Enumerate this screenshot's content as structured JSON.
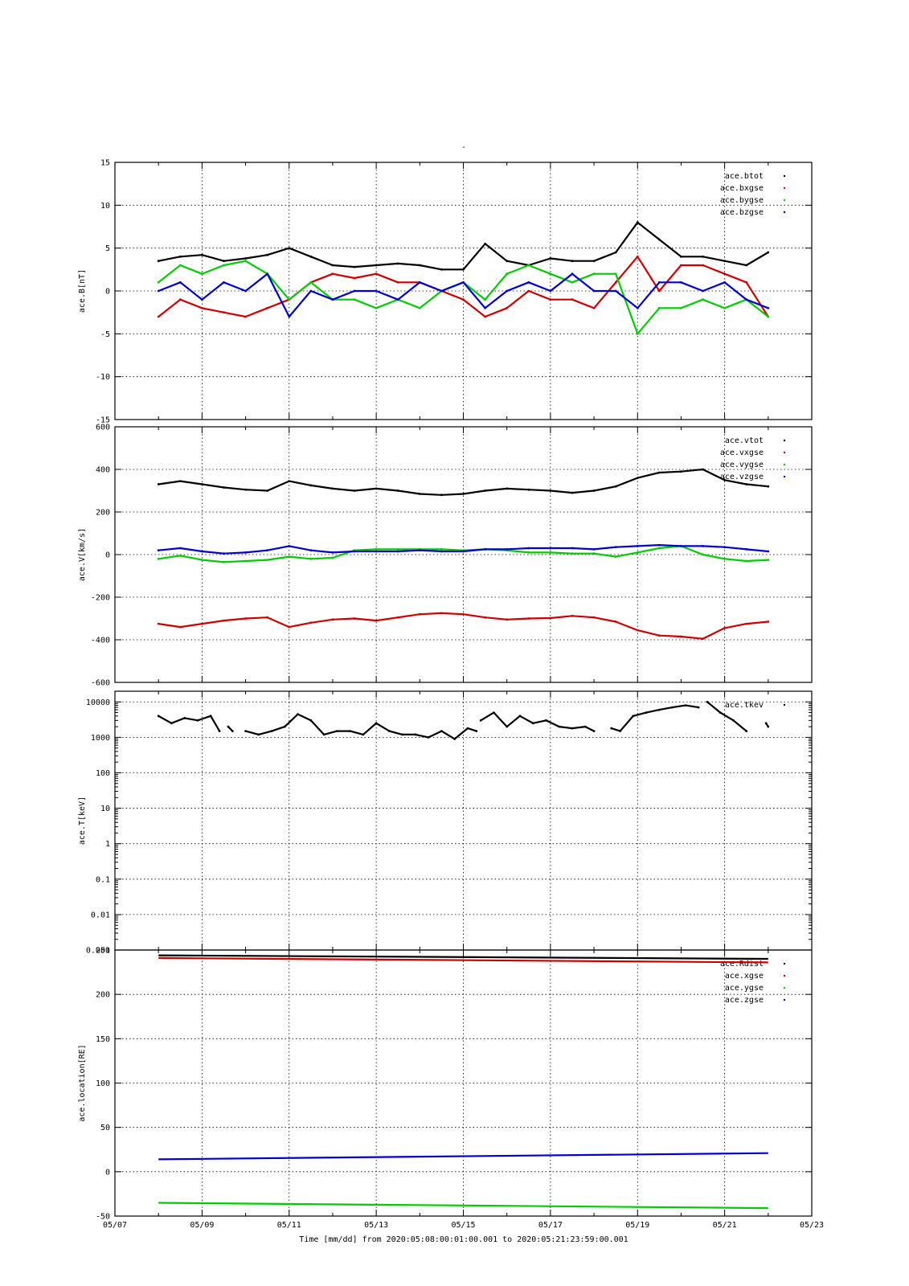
{
  "figure": {
    "top_label": "-",
    "xlabel": "Time [mm/dd]  from 2020:05:08:00:01:00.001  to  2020:05:21:23:59:00.001",
    "x_ticks": [
      "05/07",
      "05/09",
      "05/11",
      "05/13",
      "05/15",
      "05/17",
      "05/19",
      "05/21",
      "05/23"
    ],
    "x_range_days": [
      7,
      23
    ]
  },
  "chart_data": [
    {
      "type": "scatter",
      "ylabel": "ace.B[nT]",
      "ylim": [
        -15,
        15
      ],
      "y_ticks": [
        "15",
        "10",
        "5",
        "0",
        "-5",
        "-10",
        "-15"
      ],
      "grid": true,
      "legend": "top-right",
      "x": [
        8.0,
        8.5,
        9.0,
        9.5,
        10.0,
        10.5,
        11.0,
        11.5,
        12.0,
        12.5,
        13.0,
        13.5,
        14.0,
        14.5,
        15.0,
        15.5,
        16.0,
        16.5,
        17.0,
        17.5,
        18.0,
        18.5,
        19.0,
        19.5,
        20.0,
        20.5,
        21.0,
        21.5,
        22.0
      ],
      "series": [
        {
          "name": "ace.btot",
          "color": "#000000",
          "values": [
            3.5,
            4,
            4.2,
            3.5,
            3.8,
            4.2,
            5,
            4,
            3,
            2.8,
            3,
            3.2,
            3,
            2.5,
            2.5,
            5.5,
            3.5,
            3,
            3.8,
            3.5,
            3.5,
            4.5,
            8,
            6,
            4,
            4,
            3.5,
            3,
            4.5
          ]
        },
        {
          "name": "ace.bxgse",
          "color": "#cc0000",
          "values": [
            -3,
            -1,
            -2,
            -2.5,
            -3,
            -2,
            -1,
            1,
            2,
            1.5,
            2,
            1,
            1,
            0,
            -1,
            -3,
            -2,
            0,
            -1,
            -1,
            -2,
            1,
            4,
            0,
            3,
            3,
            2,
            1,
            -3
          ]
        },
        {
          "name": "ace.bygse",
          "color": "#00cc00",
          "values": [
            1,
            3,
            2,
            3,
            3.5,
            2,
            -1,
            1,
            -1,
            -1,
            -2,
            -1,
            -2,
            0,
            1,
            -1,
            2,
            3,
            2,
            1,
            2,
            2,
            -5,
            -2,
            -2,
            -1,
            -2,
            -1,
            -3
          ]
        },
        {
          "name": "ace.bzgse",
          "color": "#0000cc",
          "values": [
            0,
            1,
            -1,
            1,
            0,
            2,
            -3,
            0,
            -1,
            0,
            0,
            -1,
            1,
            0,
            1,
            -2,
            0,
            1,
            0,
            2,
            0,
            0,
            -2,
            1,
            1,
            0,
            1,
            -1,
            -2
          ]
        }
      ]
    },
    {
      "type": "scatter",
      "ylabel": "ace.V[km/s]",
      "ylim": [
        -600,
        600
      ],
      "y_ticks": [
        "600",
        "400",
        "200",
        "0",
        "-200",
        "-400",
        "-600"
      ],
      "grid": true,
      "legend": "top-right",
      "x": [
        8.0,
        8.5,
        9.0,
        9.5,
        10.0,
        10.5,
        11.0,
        11.5,
        12.0,
        12.5,
        13.0,
        13.5,
        14.0,
        14.5,
        15.0,
        15.5,
        16.0,
        16.5,
        17.0,
        17.5,
        18.0,
        18.5,
        19.0,
        19.5,
        20.0,
        20.5,
        21.0,
        21.5,
        22.0
      ],
      "series": [
        {
          "name": "ace.vtot",
          "color": "#000000",
          "values": [
            330,
            345,
            330,
            315,
            305,
            300,
            345,
            325,
            310,
            300,
            310,
            300,
            285,
            280,
            285,
            300,
            310,
            305,
            300,
            290,
            300,
            320,
            360,
            385,
            390,
            400,
            350,
            330,
            320
          ]
        },
        {
          "name": "ace.vxgse",
          "color": "#cc0000",
          "values": [
            -325,
            -340,
            -325,
            -310,
            -300,
            -295,
            -340,
            -320,
            -305,
            -300,
            -310,
            -295,
            -280,
            -275,
            -280,
            -295,
            -305,
            -300,
            -298,
            -288,
            -295,
            -315,
            -355,
            -380,
            -385,
            -395,
            -345,
            -325,
            -315
          ]
        },
        {
          "name": "ace.vygse",
          "color": "#00cc00",
          "values": [
            -20,
            -5,
            -25,
            -35,
            -30,
            -25,
            -10,
            -20,
            -15,
            20,
            25,
            25,
            25,
            25,
            20,
            25,
            20,
            10,
            10,
            5,
            5,
            -10,
            10,
            30,
            40,
            0,
            -20,
            -30,
            -25
          ]
        },
        {
          "name": "ace.vzgse",
          "color": "#0000cc",
          "values": [
            20,
            30,
            15,
            5,
            10,
            20,
            40,
            20,
            10,
            15,
            15,
            15,
            20,
            15,
            15,
            25,
            25,
            30,
            30,
            30,
            25,
            35,
            40,
            45,
            40,
            40,
            35,
            25,
            15
          ]
        }
      ]
    },
    {
      "type": "scatter",
      "ylabel": "ace.T[keV]",
      "yscale": "log",
      "ylim": [
        0.001,
        20000
      ],
      "y_ticks": [
        "10000",
        "1000",
        "100",
        "10",
        "1",
        "0.1",
        "0.01",
        "0.001"
      ],
      "grid": true,
      "legend": "top-right",
      "series": [
        {
          "name": "ace.tkev",
          "color": "#000000",
          "segments": [
            {
              "x": [
                8.0,
                8.3,
                8.6,
                8.9,
                9.2,
                9.4
              ],
              "values": [
                4000,
                2500,
                3500,
                3000,
                4000,
                1500
              ]
            },
            {
              "x": [
                9.6,
                9.7
              ],
              "values": [
                2000,
                1500
              ]
            },
            {
              "x": [
                10.0,
                10.3,
                10.6,
                10.9,
                11.2,
                11.5,
                11.8,
                12.1,
                12.4,
                12.7,
                13.0,
                13.3,
                13.6,
                13.9,
                14.2,
                14.5,
                14.8,
                15.1,
                15.3
              ],
              "values": [
                1500,
                1200,
                1500,
                2000,
                4500,
                3000,
                1200,
                1500,
                1500,
                1200,
                2500,
                1500,
                1200,
                1200,
                1000,
                1500,
                900,
                1800,
                1500
              ]
            },
            {
              "x": [
                15.4,
                15.7,
                16.0,
                16.3,
                16.6,
                16.9,
                17.2,
                17.5,
                17.8,
                18.0
              ],
              "values": [
                3000,
                5000,
                2000,
                4000,
                2500,
                3000,
                2000,
                1800,
                2000,
                1500
              ]
            },
            {
              "x": [
                18.4,
                18.6,
                18.9,
                19.2,
                19.5,
                19.8,
                20.1,
                20.4
              ],
              "values": [
                1800,
                1500,
                4000,
                5000,
                6000,
                7000,
                8000,
                7000
              ]
            },
            {
              "x": [
                20.6,
                20.9,
                21.2,
                21.5
              ],
              "values": [
                10000,
                5000,
                3000,
                1500
              ]
            },
            {
              "x": [
                21.95,
                22.0
              ],
              "values": [
                2500,
                2000
              ]
            }
          ]
        }
      ]
    },
    {
      "type": "line",
      "ylabel": "ace.location[RE]",
      "ylim": [
        -50,
        250
      ],
      "y_ticks": [
        "250",
        "200",
        "150",
        "100",
        "50",
        "0",
        "-50"
      ],
      "grid": true,
      "legend": "top-right",
      "x": [
        8.0,
        22.0
      ],
      "series": [
        {
          "name": "ace.Rdist",
          "color": "#000000",
          "values": [
            244,
            240
          ]
        },
        {
          "name": "ace.xgse",
          "color": "#cc0000",
          "values": [
            241,
            236
          ]
        },
        {
          "name": "ace.ygse",
          "color": "#00cc00",
          "values": [
            -35,
            -41
          ]
        },
        {
          "name": "ace.zgse",
          "color": "#0000cc",
          "values": [
            14,
            21
          ]
        }
      ]
    }
  ]
}
